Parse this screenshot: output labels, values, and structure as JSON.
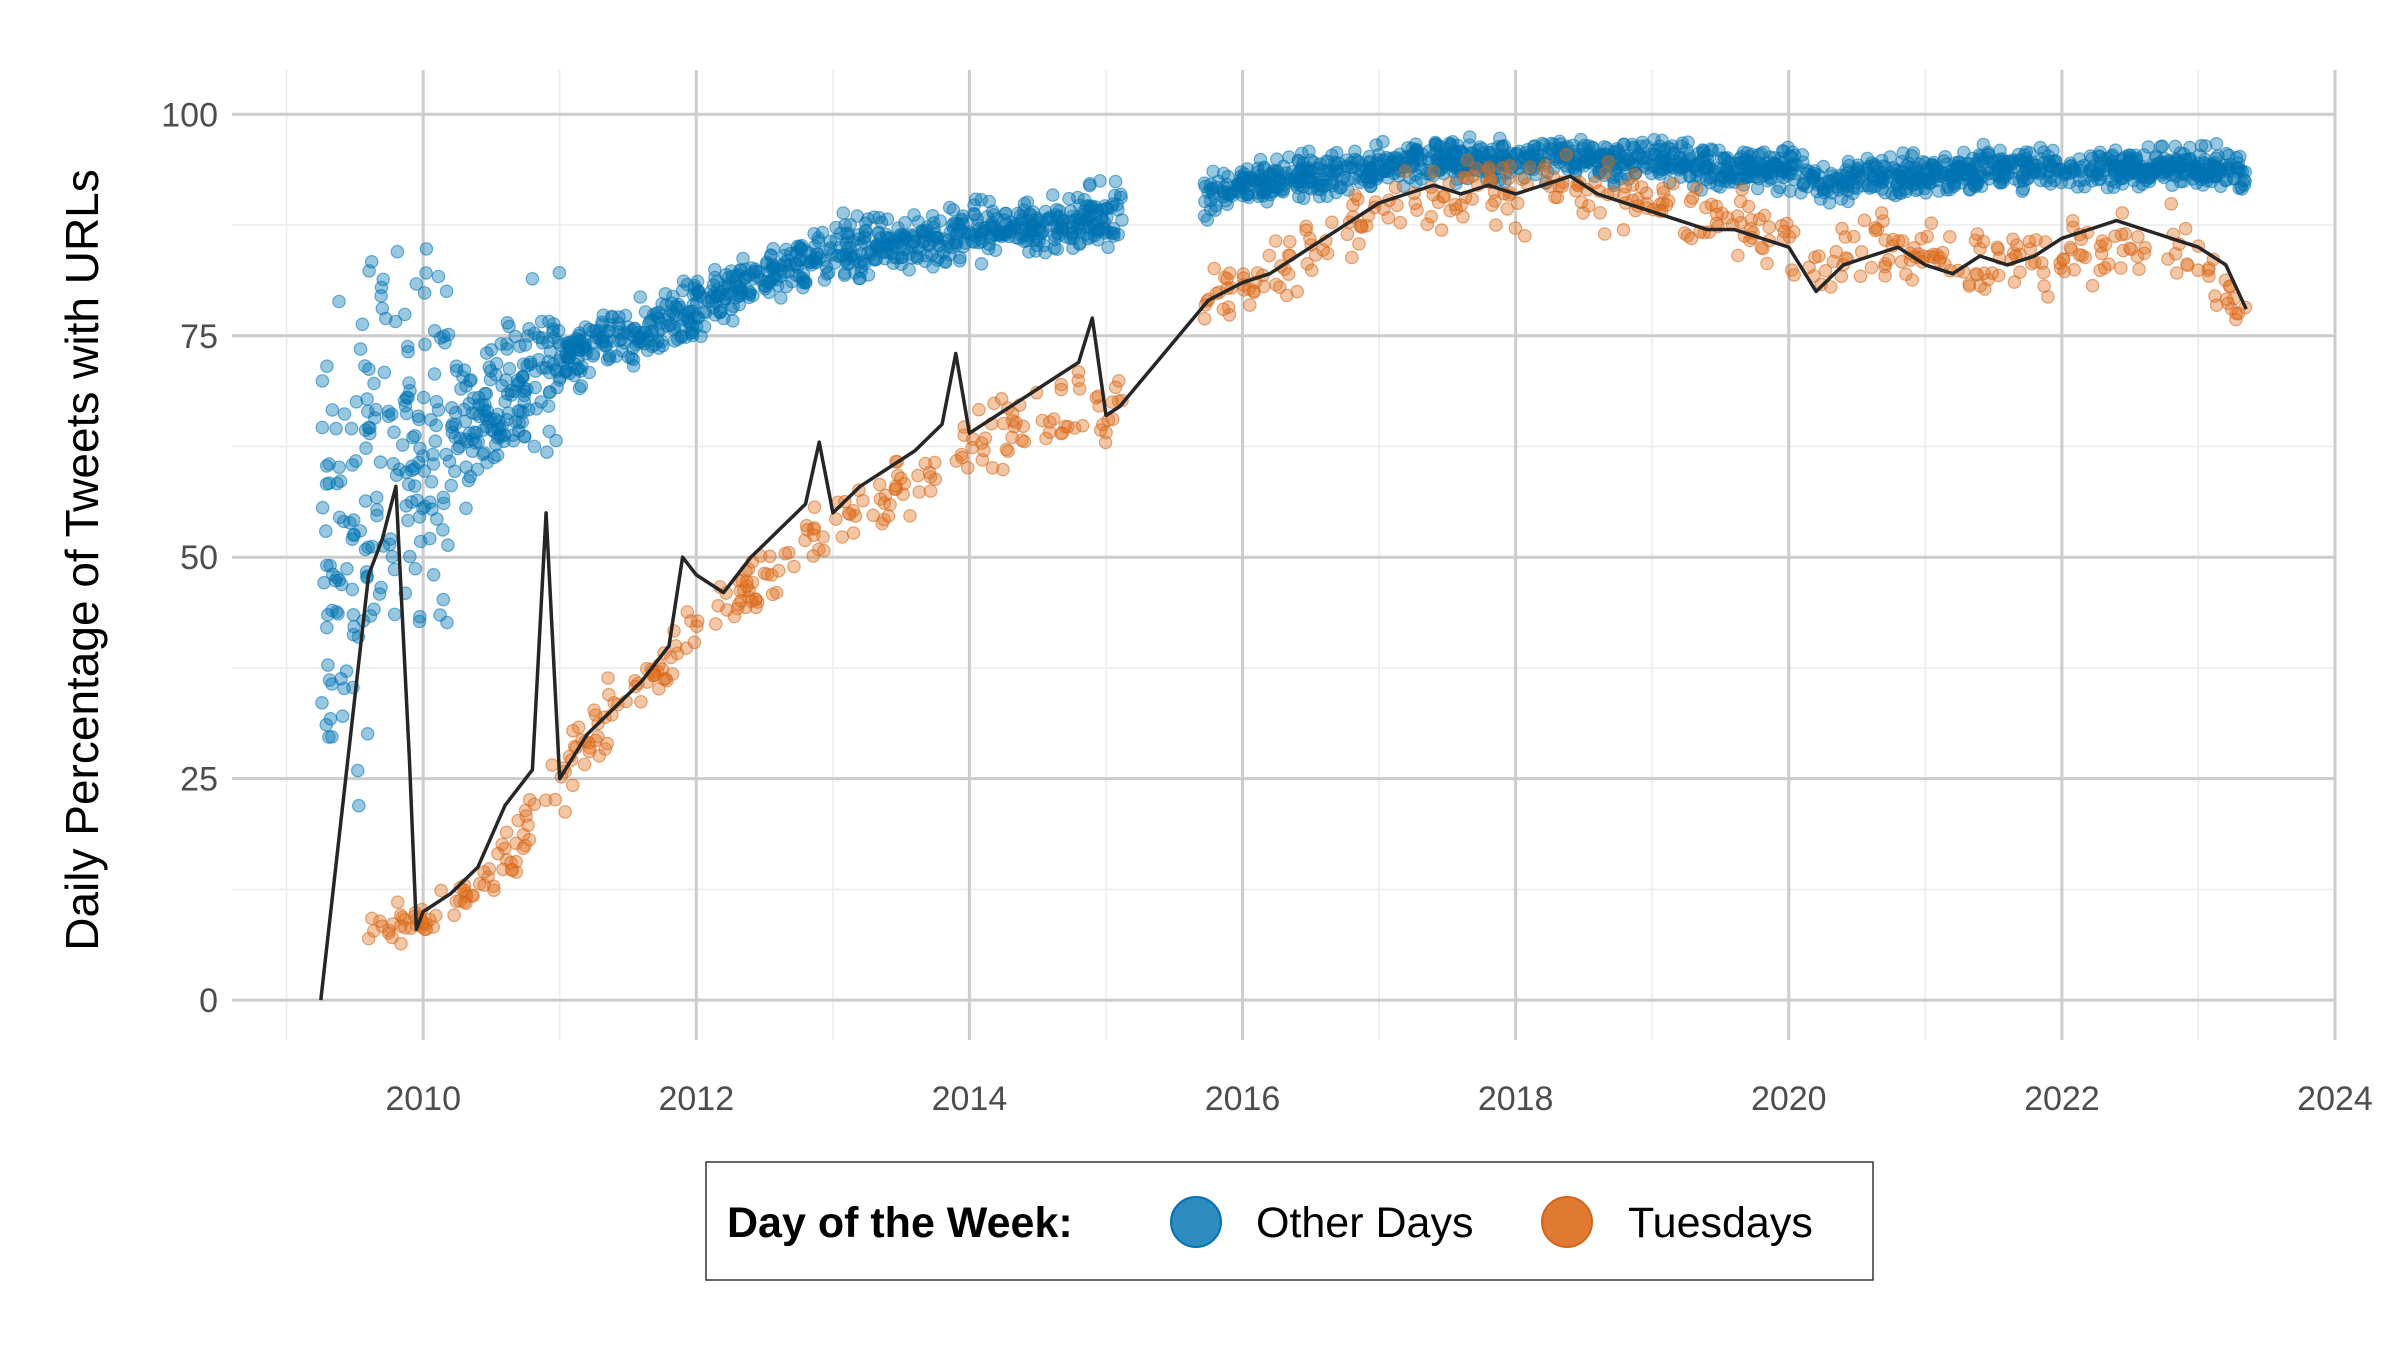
{
  "chart_data": {
    "type": "scatter",
    "title": "",
    "xlabel": "",
    "ylabel": "Daily Percentage of Tweets with URLs",
    "xlim": [
      2008.6,
      2024.0
    ],
    "ylim": [
      -4.5,
      105
    ],
    "x_ticks": [
      "2010",
      "2012",
      "2014",
      "2016",
      "2018",
      "2020",
      "2022",
      "2024"
    ],
    "y_ticks": [
      "0",
      "25",
      "50",
      "75",
      "100"
    ],
    "grid": true,
    "legend": {
      "position": "bottom",
      "title": "Day of the Week:",
      "items": [
        "Other Days",
        "Tuesdays"
      ]
    },
    "series": [
      {
        "name": "Other Days",
        "color": "#0072B2",
        "mark": "points",
        "trend_x": [
          2009.25,
          2009.6,
          2009.8,
          2010.0,
          2010.2,
          2010.4,
          2010.6,
          2010.8,
          2011.0,
          2011.25,
          2011.5,
          2011.75,
          2012.0,
          2012.25,
          2012.5,
          2012.75,
          2013.0,
          2013.25,
          2013.5,
          2013.75,
          2014.0,
          2014.25,
          2014.5,
          2014.75,
          2015.0,
          2015.1,
          2015.75,
          2016.0,
          2016.5,
          2017.0,
          2017.5,
          2018.0,
          2018.5,
          2019.0,
          2019.5,
          2020.0,
          2020.25,
          2020.5,
          2021.0,
          2021.5,
          2022.0,
          2022.5,
          2023.0,
          2023.35
        ],
        "trend_y": [
          50,
          55,
          60,
          62,
          64,
          66,
          68,
          70,
          72,
          74,
          75,
          76,
          78,
          80,
          82,
          83,
          84,
          85,
          85,
          86,
          87,
          87,
          87,
          88,
          88,
          89,
          91,
          92,
          93,
          94,
          95,
          95,
          95,
          95,
          94,
          94,
          92,
          93,
          93,
          94,
          94,
          94,
          94,
          93.5
        ]
      },
      {
        "name": "Tuesdays",
        "color": "#E07020",
        "mark": "points",
        "trend_x": [
          2009.6,
          2009.8,
          2010.0,
          2010.25,
          2010.5,
          2010.75,
          2011.0,
          2011.25,
          2011.5,
          2011.75,
          2012.0,
          2012.25,
          2012.5,
          2012.75,
          2013.0,
          2013.25,
          2013.5,
          2013.75,
          2014.0,
          2014.25,
          2014.5,
          2014.75,
          2015.0,
          2015.1,
          2015.75,
          2016.0,
          2016.5,
          2017.0,
          2017.5,
          2018.0,
          2018.5,
          2019.0,
          2019.5,
          2020.0,
          2020.25,
          2020.5,
          2021.0,
          2021.5,
          2022.0,
          2022.5,
          2023.0,
          2023.35
        ],
        "trend_y": [
          7,
          8,
          9,
          11,
          14,
          19,
          25,
          30,
          34,
          38,
          42,
          45,
          48,
          51,
          54,
          56,
          58,
          60,
          62,
          64,
          66,
          67,
          67,
          67,
          79,
          80,
          85,
          89,
          91,
          91,
          92,
          90,
          88,
          86,
          83,
          85,
          84,
          83,
          84,
          86,
          84,
          78
        ]
      }
    ],
    "trend_line": {
      "color": "#262626",
      "x": [
        2009.25,
        2009.6,
        2009.7,
        2009.8,
        2009.9,
        2009.95,
        2010.0,
        2010.2,
        2010.4,
        2010.6,
        2010.8,
        2010.9,
        2011.0,
        2011.2,
        2011.4,
        2011.6,
        2011.8,
        2011.9,
        2012.0,
        2012.2,
        2012.4,
        2012.6,
        2012.8,
        2012.9,
        2013.0,
        2013.2,
        2013.4,
        2013.6,
        2013.8,
        2013.9,
        2014.0,
        2014.2,
        2014.4,
        2014.6,
        2014.8,
        2014.9,
        2015.0,
        2015.1,
        2015.75,
        2016.0,
        2016.2,
        2016.4,
        2016.6,
        2016.8,
        2017.0,
        2017.2,
        2017.4,
        2017.6,
        2017.8,
        2018.0,
        2018.2,
        2018.4,
        2018.6,
        2018.8,
        2019.0,
        2019.2,
        2019.4,
        2019.6,
        2019.8,
        2020.0,
        2020.2,
        2020.4,
        2020.6,
        2020.8,
        2021.0,
        2021.2,
        2021.4,
        2021.6,
        2021.8,
        2022.0,
        2022.2,
        2022.4,
        2022.6,
        2022.8,
        2023.0,
        2023.2,
        2023.35
      ],
      "y": [
        0,
        48,
        52,
        58,
        27,
        8,
        10,
        12,
        15,
        22,
        26,
        55,
        25,
        30,
        33,
        36,
        40,
        50,
        48,
        46,
        50,
        53,
        56,
        63,
        55,
        58,
        60,
        62,
        65,
        73,
        64,
        66,
        68,
        70,
        72,
        77,
        66,
        67,
        79,
        81,
        82,
        84,
        86,
        88,
        90,
        91,
        92,
        91,
        92,
        91,
        92,
        93,
        91,
        90,
        89,
        88,
        87,
        87,
        86,
        85,
        80,
        83,
        84,
        85,
        83,
        82,
        84,
        83,
        84,
        86,
        87,
        88,
        87,
        86,
        85,
        83,
        78
      ]
    }
  }
}
